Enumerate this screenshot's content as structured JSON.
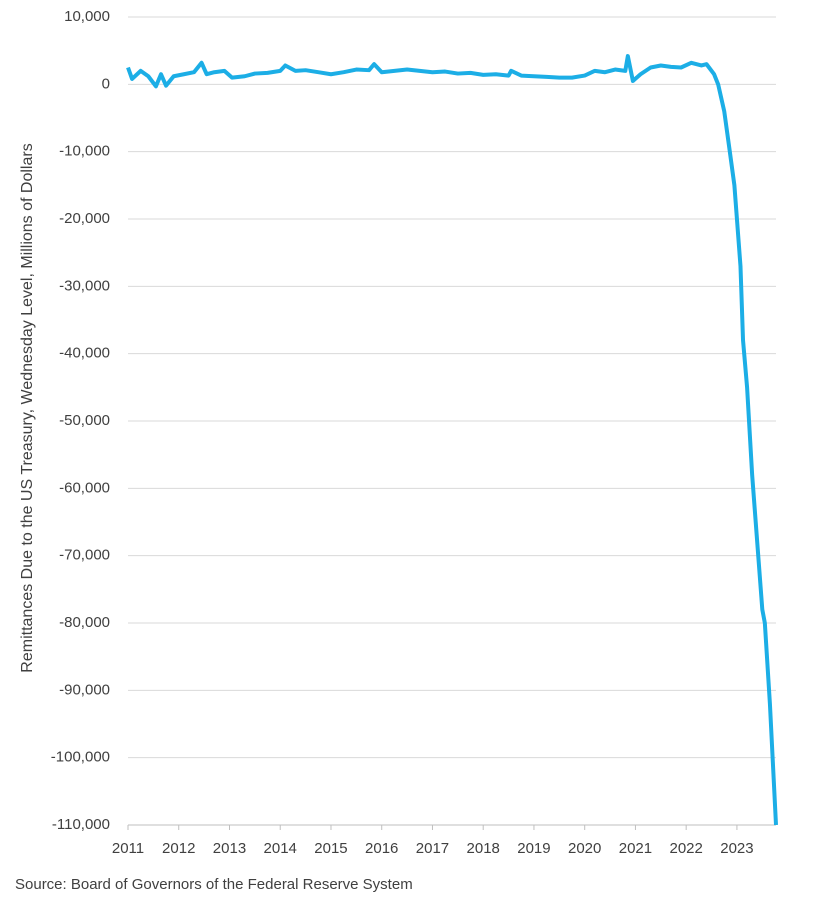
{
  "chart_data": {
    "type": "line",
    "y_label": "Remittances Due to the US Treasury, Wednesday Level, Millions of Dollars",
    "source": "Source: Board of Governors of the Federal Reserve System",
    "grid": true,
    "xlim": [
      2011,
      2023.77
    ],
    "xticks": [
      2011,
      2012,
      2013,
      2014,
      2015,
      2016,
      2017,
      2018,
      2019,
      2020,
      2021,
      2022,
      2023
    ],
    "ylim": [
      -110000,
      10000
    ],
    "yticks": [
      {
        "value": 10000,
        "label": "10,000"
      },
      0,
      {
        "value": -10000,
        "label": "-10,000"
      },
      {
        "value": -20000,
        "label": "-20,000"
      },
      {
        "value": -30000,
        "label": "-30,000"
      },
      {
        "value": -40000,
        "label": "-40,000"
      },
      {
        "value": -50000,
        "label": "-50,000"
      },
      {
        "value": -60000,
        "label": "-60,000"
      },
      {
        "value": -70000,
        "label": "-70,000"
      },
      {
        "value": -80000,
        "label": "-80,000"
      },
      {
        "value": -90000,
        "label": "-90,000"
      },
      {
        "value": -100000,
        "label": "-100,000"
      },
      {
        "value": -110000,
        "label": "-110,000"
      }
    ],
    "x": [
      2011.0,
      2011.08,
      2011.25,
      2011.4,
      2011.55,
      2011.65,
      2011.75,
      2011.9,
      2012.1,
      2012.3,
      2012.45,
      2012.55,
      2012.7,
      2012.9,
      2013.05,
      2013.3,
      2013.5,
      2013.75,
      2014.0,
      2014.1,
      2014.3,
      2014.5,
      2014.75,
      2015.0,
      2015.25,
      2015.5,
      2015.75,
      2015.85,
      2016.0,
      2016.25,
      2016.5,
      2016.75,
      2017.0,
      2017.25,
      2017.5,
      2017.75,
      2018.0,
      2018.25,
      2018.5,
      2018.55,
      2018.75,
      2019.0,
      2019.25,
      2019.5,
      2019.75,
      2020.0,
      2020.2,
      2020.4,
      2020.6,
      2020.8,
      2020.85,
      2020.95,
      2021.1,
      2021.3,
      2021.5,
      2021.7,
      2021.9,
      2022.1,
      2022.3,
      2022.4,
      2022.55,
      2022.63,
      2022.75,
      2022.86,
      2022.95,
      2023.0,
      2023.07,
      2023.12,
      2023.2,
      2023.3,
      2023.4,
      2023.5,
      2023.55,
      2023.65,
      2023.77
    ],
    "series": [
      {
        "name": "Remittances",
        "color": "#1caee6",
        "values": [
          2500,
          800,
          2000,
          1200,
          -300,
          1500,
          -200,
          1200,
          1500,
          1800,
          3200,
          1500,
          1800,
          2000,
          1000,
          1200,
          1600,
          1700,
          2000,
          2800,
          2000,
          2100,
          1800,
          1500,
          1800,
          2200,
          2100,
          3000,
          1800,
          2000,
          2200,
          2000,
          1800,
          1900,
          1600,
          1700,
          1400,
          1500,
          1300,
          2000,
          1300,
          1200,
          1100,
          1000,
          1000,
          1300,
          2000,
          1800,
          2200,
          2000,
          4200,
          500,
          1500,
          2500,
          2800,
          2600,
          2500,
          3200,
          2800,
          3000,
          1500,
          0,
          -4000,
          -10000,
          -15000,
          -20000,
          -27000,
          -38000,
          -45000,
          -58000,
          -68000,
          -78000,
          -80000,
          -92000,
          -110000
        ]
      }
    ]
  }
}
